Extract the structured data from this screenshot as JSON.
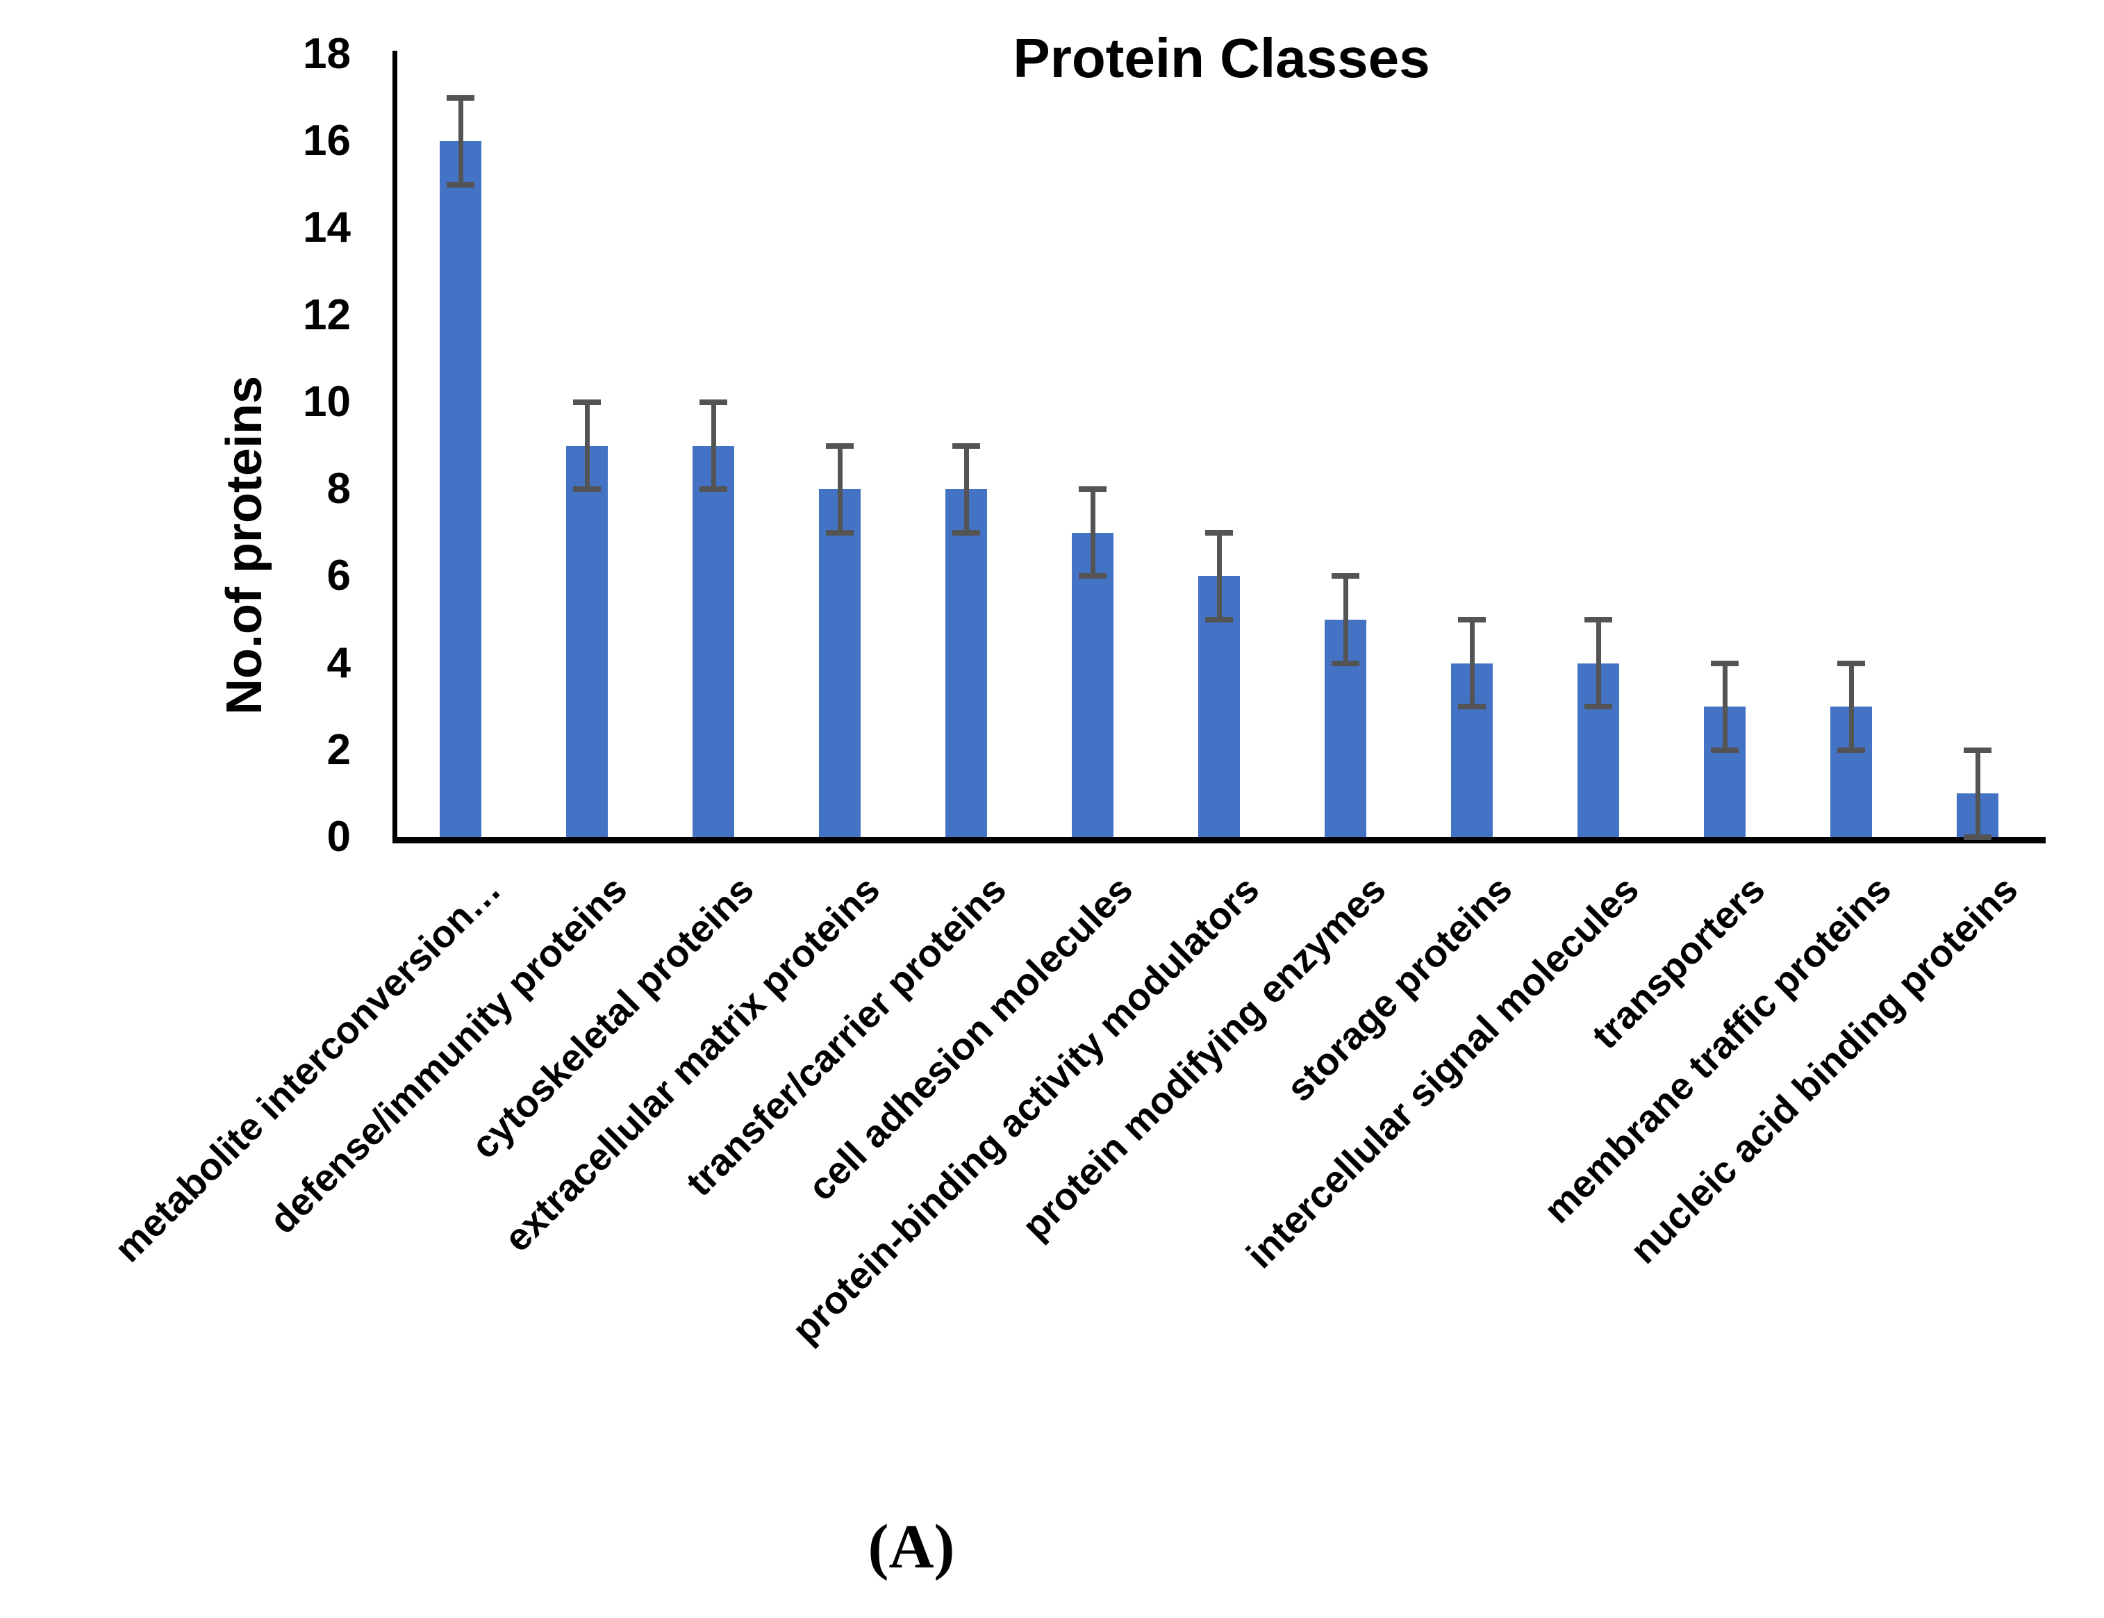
{
  "figure": {
    "caption": "(A)"
  },
  "chart_data": {
    "type": "bar",
    "title": "Protein Classes",
    "ylabel": "No.of proteins",
    "xlabel": "",
    "ylim": [
      0,
      18
    ],
    "yticks": [
      0,
      2,
      4,
      6,
      8,
      10,
      12,
      14,
      16,
      18
    ],
    "grid": false,
    "legend_position": "none",
    "categories": [
      "metabolite interconversion…",
      "defense/immunity proteins",
      "cytoskeletal proteins",
      "extracellular matrix proteins",
      "transfer/carrier proteins",
      "cell adhesion molecules",
      "protein-binding activity modulators",
      "protein modifying enzymes",
      "storage proteins",
      "intercellular signal molecules",
      "transporters",
      "membrane traffic proteins",
      "nucleic acid binding proteins"
    ],
    "values": [
      16,
      9,
      9,
      8,
      8,
      7,
      6,
      5,
      4,
      4,
      3,
      3,
      1
    ],
    "error_bars": {
      "type": "symmetric",
      "values": [
        1,
        1,
        1,
        1,
        1,
        1,
        1,
        1,
        1,
        1,
        1,
        1,
        1
      ]
    },
    "bar_color": "#4472C4",
    "error_color": "#545454",
    "axis_color": "#000000",
    "text_color": "#000000"
  }
}
